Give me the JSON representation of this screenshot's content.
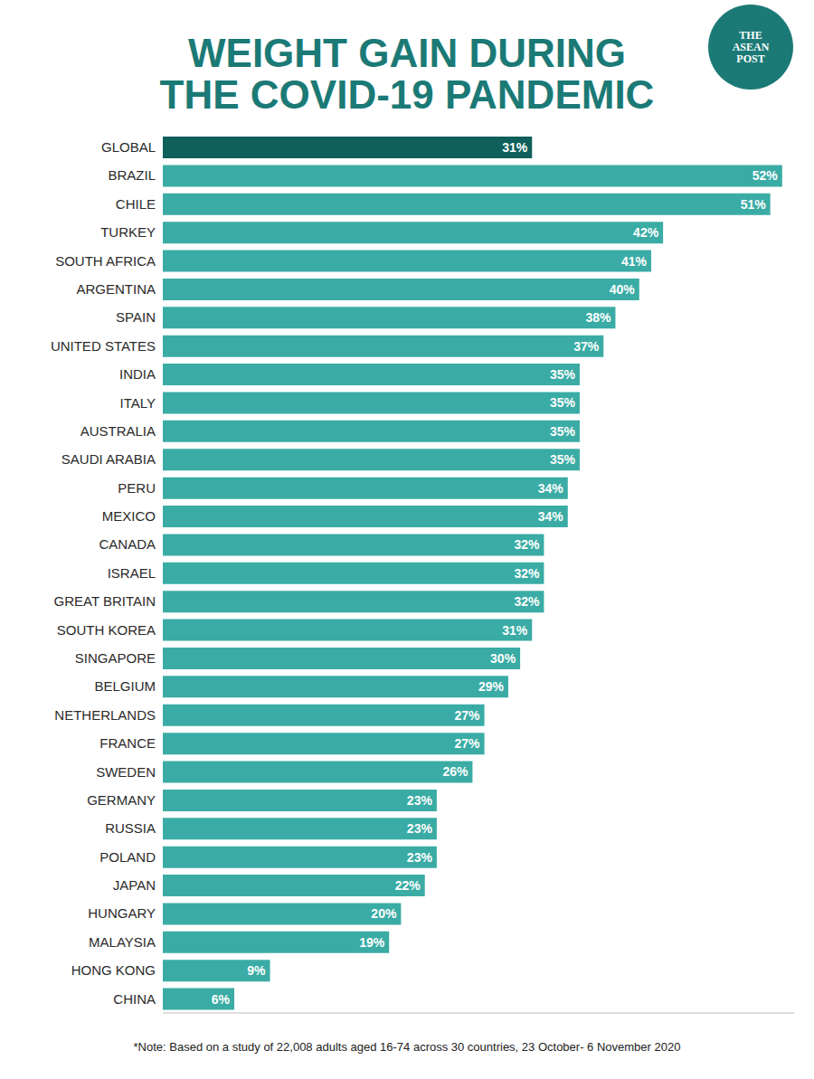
{
  "chart_data": {
    "type": "bar",
    "orientation": "horizontal",
    "title": "WEIGHT GAIN DURING THE COVID-19 PANDEMIC",
    "logo": "THE ASEAN POST",
    "note": "*Note: Based on a study of 22,008 adults aged 16-74 across 30 countries, 23 October- 6 November 2020",
    "categories": [
      "GLOBAL",
      "BRAZIL",
      "CHILE",
      "TURKEY",
      "SOUTH AFRICA",
      "ARGENTINA",
      "SPAIN",
      "UNITED STATES",
      "INDIA",
      "ITALY",
      "AUSTRALIA",
      "SAUDI ARABIA",
      "PERU",
      "MEXICO",
      "CANADA",
      "ISRAEL",
      "GREAT BRITAIN",
      "SOUTH KOREA",
      "SINGAPORE",
      "BELGIUM",
      "NETHERLANDS",
      "FRANCE",
      "SWEDEN",
      "GERMANY",
      "RUSSIA",
      "POLAND",
      "JAPAN",
      "HUNGARY",
      "MALAYSIA",
      "HONG KONG",
      "CHINA"
    ],
    "values": [
      31,
      52,
      51,
      42,
      41,
      40,
      38,
      37,
      35,
      35,
      35,
      35,
      34,
      34,
      32,
      32,
      32,
      31,
      30,
      29,
      27,
      27,
      26,
      23,
      23,
      23,
      22,
      20,
      19,
      9,
      6
    ],
    "value_labels": [
      "31%",
      "52%",
      "51%",
      "42%",
      "41%",
      "40%",
      "38%",
      "37%",
      "35%",
      "35%",
      "35%",
      "35%",
      "34%",
      "34%",
      "32%",
      "32%",
      "32%",
      "31%",
      "30%",
      "29%",
      "27%",
      "27%",
      "26%",
      "23%",
      "23%",
      "23%",
      "22%",
      "20%",
      "19%",
      "9%",
      "6%"
    ],
    "colors": [
      "#0f5f5b",
      "#3aaca5",
      "#3aaca5",
      "#3aaca5",
      "#3aaca5",
      "#3aaca5",
      "#3aaca5",
      "#3aaca5",
      "#3aaca5",
      "#3aaca5",
      "#3aaca5",
      "#3aaca5",
      "#3aaca5",
      "#3aaca5",
      "#3aaca5",
      "#3aaca5",
      "#3aaca5",
      "#3aaca5",
      "#3aaca5",
      "#3aaca5",
      "#3aaca5",
      "#3aaca5",
      "#3aaca5",
      "#3aaca5",
      "#3aaca5",
      "#3aaca5",
      "#3aaca5",
      "#3aaca5",
      "#3aaca5",
      "#3aaca5",
      "#3aaca5"
    ],
    "xlim": [
      0,
      53
    ],
    "xticks": [],
    "data_labels": true,
    "tick_labels": "y",
    "grid": false
  }
}
